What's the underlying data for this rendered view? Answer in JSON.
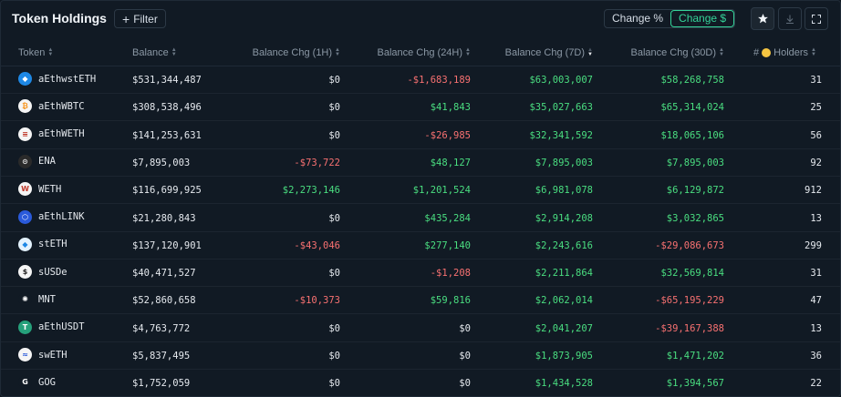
{
  "header": {
    "title": "Token Holdings",
    "filter_label": "Filter",
    "toggle_percent": "Change %",
    "toggle_dollar": "Change $"
  },
  "columns": {
    "token": "Token",
    "balance": "Balance",
    "chg_1h": "Balance Chg (1H)",
    "chg_24h": "Balance Chg (24H)",
    "chg_7d": "Balance Chg (7D)",
    "chg_30d": "Balance Chg (30D)",
    "holders_prefix": "#",
    "holders": "Holders"
  },
  "colors": {
    "positive": "#4ade80",
    "negative": "#f87171",
    "accent": "#34d399"
  },
  "rows": [
    {
      "token": "aEthwstETH",
      "icon": "wsteth-icon",
      "icon_bg": "#1e88e5",
      "icon_fg": "#ffffff",
      "glyph": "◆",
      "balance": "$531,344,487",
      "h1": "$0",
      "h24": "-$1,683,189",
      "d7": "$63,003,007",
      "d30": "$58,268,758",
      "holders": "31"
    },
    {
      "token": "aEthWBTC",
      "icon": "wbtc-icon",
      "icon_bg": "#f5f5f5",
      "icon_fg": "#f7931a",
      "glyph": "₿",
      "balance": "$308,538,496",
      "h1": "$0",
      "h24": "$41,843",
      "d7": "$35,027,663",
      "d30": "$65,314,024",
      "holders": "25"
    },
    {
      "token": "aEthWETH",
      "icon": "weth-icon",
      "icon_bg": "#f5f5f5",
      "icon_fg": "#c0392b",
      "glyph": "≡",
      "balance": "$141,253,631",
      "h1": "$0",
      "h24": "-$26,985",
      "d7": "$32,341,592",
      "d30": "$18,065,106",
      "holders": "56"
    },
    {
      "token": "ENA",
      "icon": "ena-icon",
      "icon_bg": "#2a2a2a",
      "icon_fg": "#e5e5e5",
      "glyph": "⊙",
      "balance": "$7,895,003",
      "h1": "-$73,722",
      "h24": "$48,127",
      "d7": "$7,895,003",
      "d30": "$7,895,003",
      "holders": "92"
    },
    {
      "token": "WETH",
      "icon": "weth-icon",
      "icon_bg": "#f5f5f5",
      "icon_fg": "#c0392b",
      "glyph": "W",
      "balance": "$116,699,925",
      "h1": "$2,273,146",
      "h24": "$1,201,524",
      "d7": "$6,981,078",
      "d30": "$6,129,872",
      "holders": "912"
    },
    {
      "token": "aEthLINK",
      "icon": "link-icon",
      "icon_bg": "#2a5ada",
      "icon_fg": "#ffffff",
      "glyph": "⬡",
      "balance": "$21,280,843",
      "h1": "$0",
      "h24": "$435,284",
      "d7": "$2,914,208",
      "d30": "$3,032,865",
      "holders": "13"
    },
    {
      "token": "stETH",
      "icon": "steth-icon",
      "icon_bg": "#e3f2fd",
      "icon_fg": "#1e88e5",
      "glyph": "◆",
      "balance": "$137,120,901",
      "h1": "-$43,046",
      "h24": "$277,140",
      "d7": "$2,243,616",
      "d30": "-$29,086,673",
      "holders": "299"
    },
    {
      "token": "sUSDe",
      "icon": "susde-icon",
      "icon_bg": "#f5f5f5",
      "icon_fg": "#222222",
      "glyph": "$",
      "balance": "$40,471,527",
      "h1": "$0",
      "h24": "-$1,208",
      "d7": "$2,211,864",
      "d30": "$32,569,814",
      "holders": "31"
    },
    {
      "token": "MNT",
      "icon": "mnt-icon",
      "icon_bg": "#111a24",
      "icon_fg": "#ffffff",
      "glyph": "✺",
      "balance": "$52,860,658",
      "h1": "-$10,373",
      "h24": "$59,816",
      "d7": "$2,062,014",
      "d30": "-$65,195,229",
      "holders": "47"
    },
    {
      "token": "aEthUSDT",
      "icon": "usdt-icon",
      "icon_bg": "#26a17b",
      "icon_fg": "#ffffff",
      "glyph": "T",
      "balance": "$4,763,772",
      "h1": "$0",
      "h24": "$0",
      "d7": "$2,041,207",
      "d30": "-$39,167,388",
      "holders": "13"
    },
    {
      "token": "swETH",
      "icon": "sweth-icon",
      "icon_bg": "#f5f5f5",
      "icon_fg": "#2a5ada",
      "glyph": "≈",
      "balance": "$5,837,495",
      "h1": "$0",
      "h24": "$0",
      "d7": "$1,873,905",
      "d30": "$1,471,202",
      "holders": "36"
    },
    {
      "token": "GOG",
      "icon": "gog-icon",
      "icon_bg": "#111a24",
      "icon_fg": "#ffffff",
      "glyph": "G",
      "balance": "$1,752,059",
      "h1": "$0",
      "h24": "$0",
      "d7": "$1,434,528",
      "d30": "$1,394,567",
      "holders": "22"
    }
  ]
}
